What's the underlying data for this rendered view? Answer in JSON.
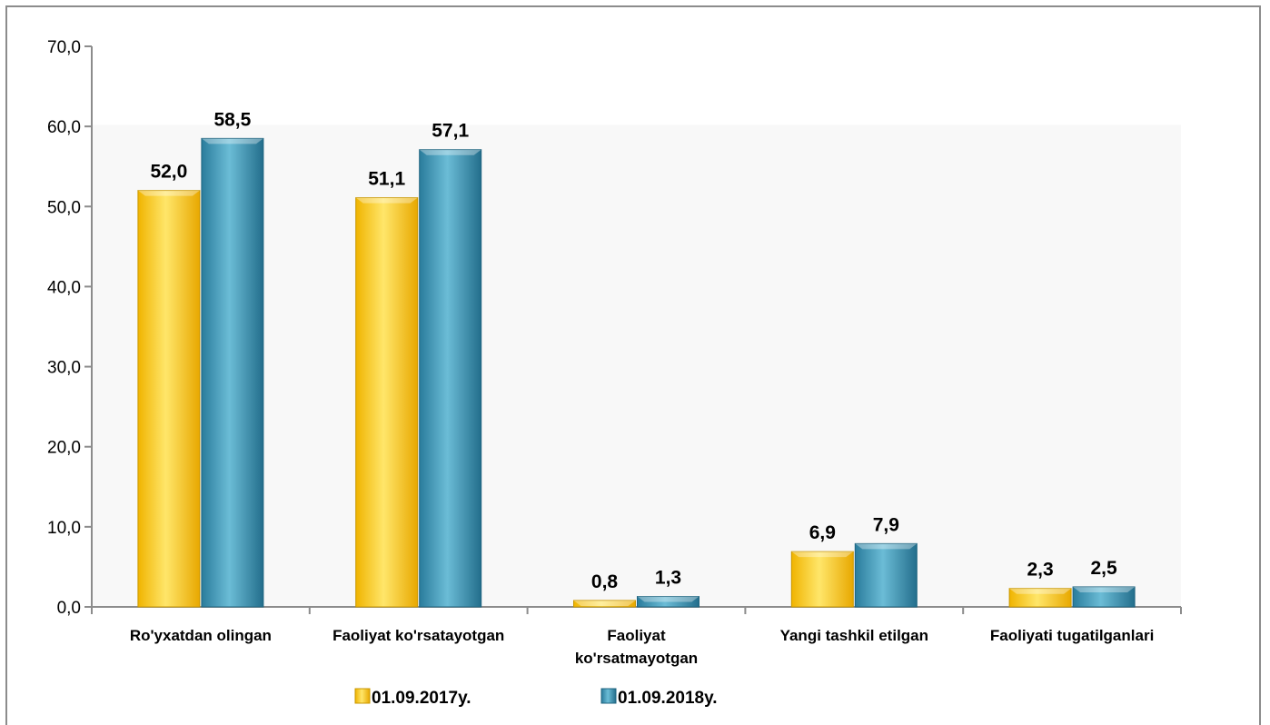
{
  "chart_data": {
    "type": "bar",
    "categories": [
      "Ro'yxatdan olingan",
      "Faoliyat ko'rsatayotgan",
      "Faoliyat ko'rsatmayotgan",
      "Yangi tashkil etilgan",
      "Faoliyati tugatilganlari"
    ],
    "category_lines": [
      [
        "Ro'yxatdan olingan"
      ],
      [
        "Faoliyat ko'rsatayotgan"
      ],
      [
        "Faoliyat",
        "ko'rsatmayotgan"
      ],
      [
        "Yangi tashkil etilgan"
      ],
      [
        "Faoliyati tugatilganlari"
      ]
    ],
    "series": [
      {
        "name": "01.09.2017y.",
        "values": [
          52.0,
          51.1,
          0.8,
          6.9,
          2.3
        ],
        "labels": [
          "52,0",
          "51,1",
          "0,8",
          "6,9",
          "2,3"
        ],
        "color": "#f5c400"
      },
      {
        "name": "01.09.2018y.",
        "values": [
          58.5,
          57.1,
          1.3,
          7.9,
          2.5
        ],
        "labels": [
          "58,5",
          "57,1",
          "1,3",
          "7,9",
          "2,5"
        ],
        "color": "#3a90b0"
      }
    ],
    "ylim": [
      0,
      70
    ],
    "yticks": [
      0,
      10,
      20,
      30,
      40,
      50,
      60,
      70
    ],
    "ytick_labels": [
      "0,0",
      "10,0",
      "20,0",
      "30,0",
      "40,0",
      "50,0",
      "60,0",
      "70,0"
    ],
    "grid": false,
    "legend": "bottom",
    "title": "",
    "xlabel": "",
    "ylabel": ""
  }
}
